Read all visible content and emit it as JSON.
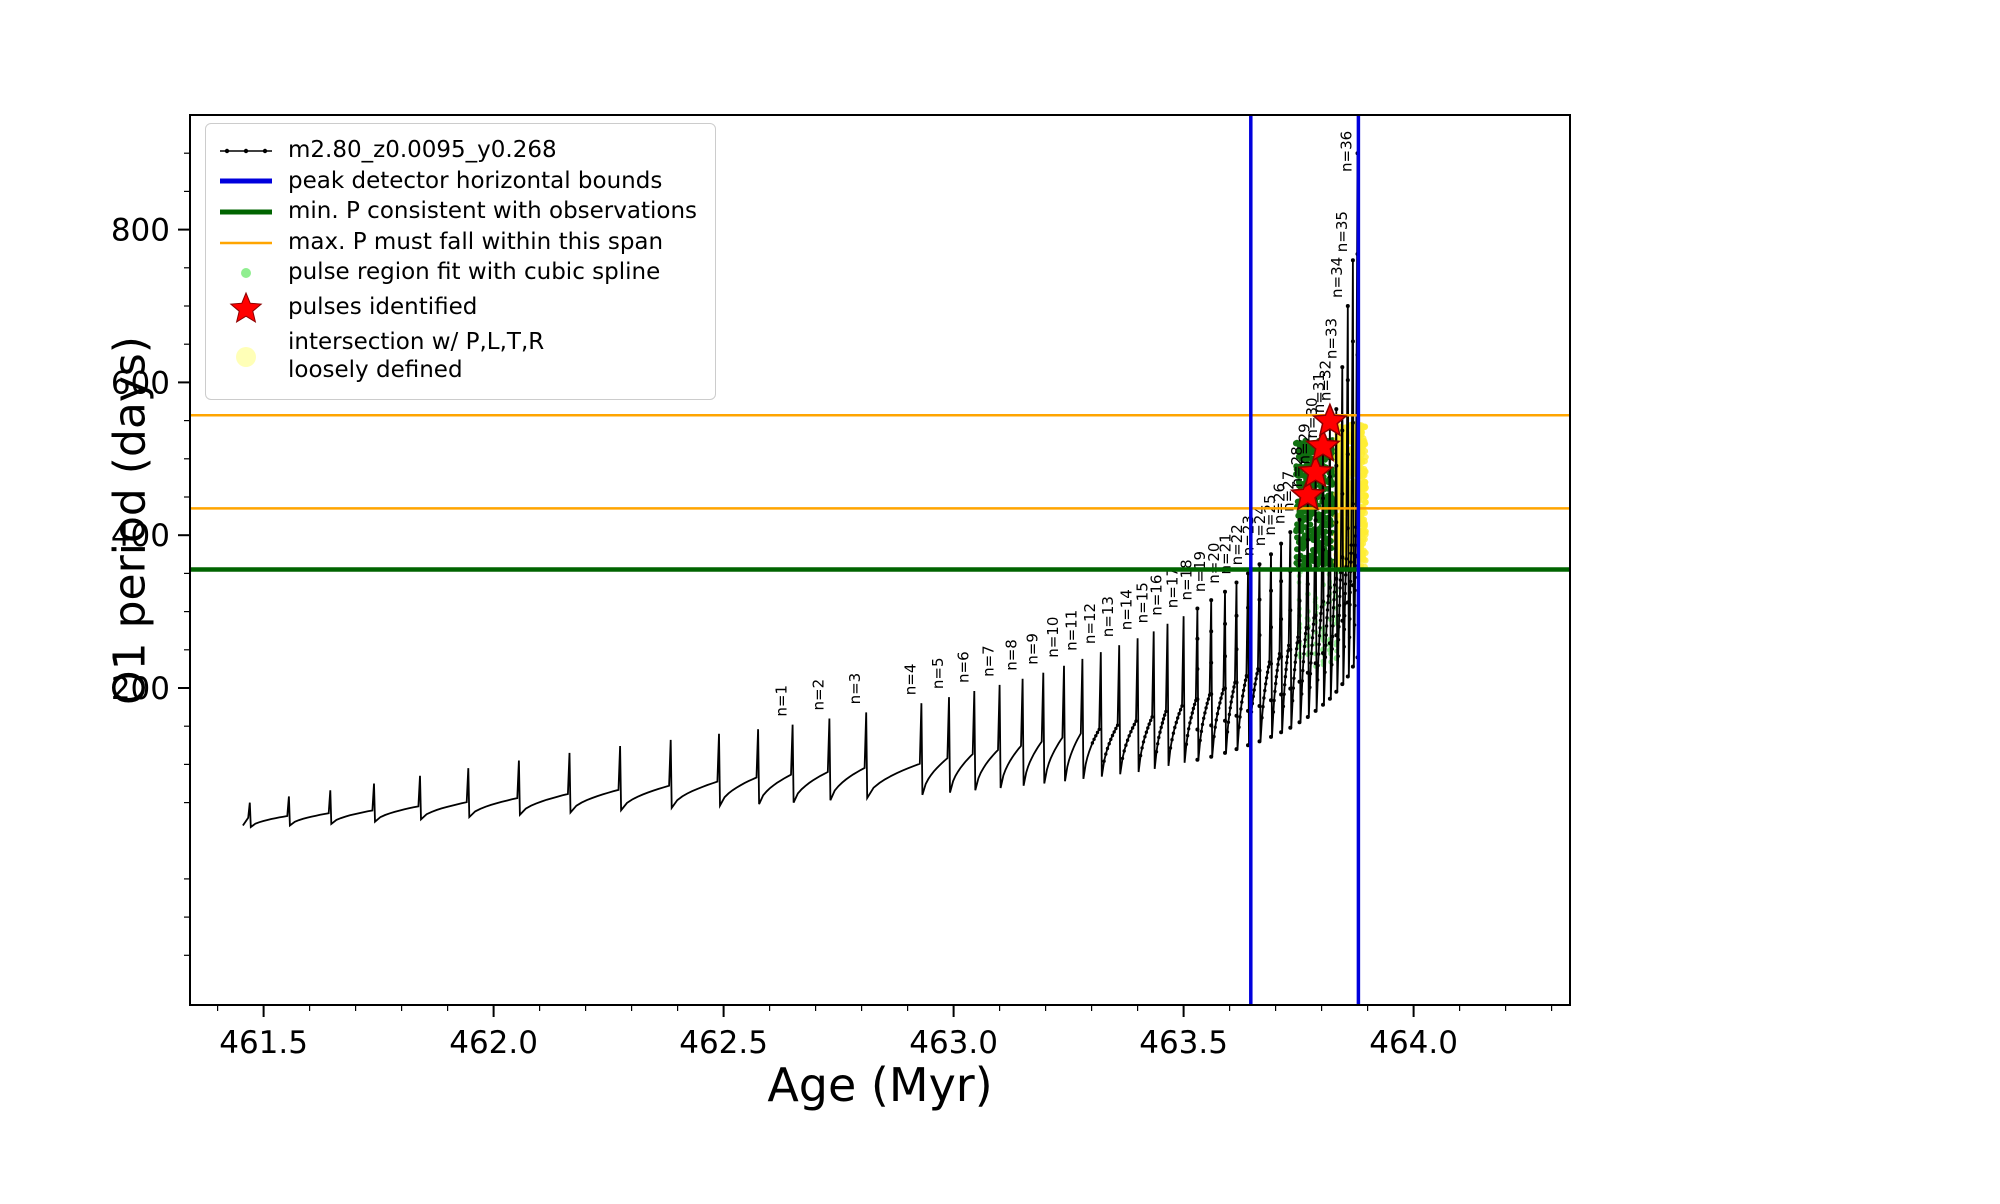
{
  "chart_data": {
    "type": "line",
    "title": "",
    "xlabel": "Age (Myr)",
    "ylabel": "O1 period (days)",
    "xlim": [
      461.34,
      464.34
    ],
    "ylim": [
      -215,
      950
    ],
    "xticks": [
      461.5,
      462.0,
      462.5,
      463.0,
      463.5,
      464.0
    ],
    "xtick_labels": [
      "461.5",
      "462.0",
      "462.5",
      "463.0",
      "463.5",
      "464.0"
    ],
    "yticks": [
      200,
      400,
      600,
      800
    ],
    "grid": false,
    "legend_position": "upper left",
    "series_label": "m2.80_z0.0095_y0.268",
    "series_color": "#000000",
    "start": {
      "age": 461.455,
      "period": 20
    },
    "vlines": {
      "label": "peak detector horizontal bounds",
      "color": "#0000dd",
      "x": [
        463.646,
        463.88
      ]
    },
    "hline_min_p": {
      "label": "min. P consistent with observations",
      "color": "#006400",
      "y": 355
    },
    "hlines_max_p": {
      "label": "max. P must fall within this span",
      "color": "#ffa500",
      "y": [
        435,
        557
      ]
    },
    "stars": {
      "label": "pulses identified",
      "color": "#ff0000",
      "edge_color": "#8b0000",
      "points": [
        [
          463.77,
          452
        ],
        [
          463.787,
          482
        ],
        [
          463.803,
          516
        ],
        [
          463.818,
          549
        ]
      ]
    },
    "spline_region": {
      "label": "pulse region fit with cubic spline",
      "color": "#90ee90",
      "dense_color": "#107010",
      "age_range": [
        463.744,
        463.826
      ],
      "period_range": [
        360,
        525
      ],
      "sparse_period_range": [
        228,
        352
      ],
      "sparse_cols": [
        463.752,
        463.77,
        463.787,
        463.803,
        463.818,
        463.832
      ],
      "sparse_per_col": 14,
      "dense_count": 400
    },
    "yellow_region": {
      "label": "intersection w/ P,L,T,R\nloosely defined",
      "color": "#ffee33",
      "age_range": [
        463.832,
        463.896
      ],
      "period_range": [
        356,
        545
      ],
      "count": 650
    },
    "pulses": [
      {
        "n": null,
        "age": 461.47,
        "peak": 50,
        "trough": 18
      },
      {
        "n": null,
        "age": 461.555,
        "peak": 58,
        "trough": 20
      },
      {
        "n": null,
        "age": 461.645,
        "peak": 66,
        "trough": 22
      },
      {
        "n": null,
        "age": 461.74,
        "peak": 75,
        "trough": 25
      },
      {
        "n": null,
        "age": 461.84,
        "peak": 85,
        "trough": 28
      },
      {
        "n": null,
        "age": 461.945,
        "peak": 95,
        "trough": 31
      },
      {
        "n": null,
        "age": 462.055,
        "peak": 105,
        "trough": 34
      },
      {
        "n": null,
        "age": 462.165,
        "peak": 115,
        "trough": 37
      },
      {
        "n": null,
        "age": 462.275,
        "peak": 124,
        "trough": 40
      },
      {
        "n": null,
        "age": 462.385,
        "peak": 132,
        "trough": 43
      },
      {
        "n": null,
        "age": 462.49,
        "peak": 140,
        "trough": 46
      },
      {
        "n": null,
        "age": 462.575,
        "peak": 146,
        "trough": 48
      },
      {
        "n": 1,
        "age": 462.65,
        "peak": 152,
        "trough": 50
      },
      {
        "n": 2,
        "age": 462.73,
        "peak": 160,
        "trough": 53
      },
      {
        "n": 3,
        "age": 462.81,
        "peak": 168,
        "trough": 56
      },
      {
        "n": 4,
        "age": 462.93,
        "peak": 180,
        "trough": 60
      },
      {
        "n": 5,
        "age": 462.99,
        "peak": 188,
        "trough": 63
      },
      {
        "n": 6,
        "age": 463.045,
        "peak": 196,
        "trough": 66
      },
      {
        "n": 7,
        "age": 463.1,
        "peak": 204,
        "trough": 69
      },
      {
        "n": 8,
        "age": 463.15,
        "peak": 212,
        "trough": 72
      },
      {
        "n": 9,
        "age": 463.195,
        "peak": 220,
        "trough": 75
      },
      {
        "n": 10,
        "age": 463.24,
        "peak": 229,
        "trough": 78
      },
      {
        "n": 11,
        "age": 463.28,
        "peak": 238,
        "trough": 81
      },
      {
        "n": 12,
        "age": 463.32,
        "peak": 247,
        "trough": 84
      },
      {
        "n": 13,
        "age": 463.36,
        "peak": 256,
        "trough": 87
      },
      {
        "n": 14,
        "age": 463.4,
        "peak": 265,
        "trough": 90
      },
      {
        "n": 15,
        "age": 463.435,
        "peak": 274,
        "trough": 94
      },
      {
        "n": 16,
        "age": 463.465,
        "peak": 284,
        "trough": 98
      },
      {
        "n": 17,
        "age": 463.5,
        "peak": 294,
        "trough": 102
      },
      {
        "n": 18,
        "age": 463.53,
        "peak": 304,
        "trough": 106
      },
      {
        "n": 19,
        "age": 463.56,
        "peak": 315,
        "trough": 110
      },
      {
        "n": 20,
        "age": 463.59,
        "peak": 326,
        "trough": 115
      },
      {
        "n": 21,
        "age": 463.615,
        "peak": 338,
        "trough": 120
      },
      {
        "n": 22,
        "age": 463.64,
        "peak": 350,
        "trough": 125
      },
      {
        "n": 23,
        "age": 463.665,
        "peak": 362,
        "trough": 130
      },
      {
        "n": 24,
        "age": 463.69,
        "peak": 375,
        "trough": 136
      },
      {
        "n": 25,
        "age": 463.712,
        "peak": 389,
        "trough": 142
      },
      {
        "n": 26,
        "age": 463.732,
        "peak": 404,
        "trough": 148
      },
      {
        "n": 27,
        "age": 463.752,
        "peak": 420,
        "trough": 155
      },
      {
        "n": 28,
        "age": 463.77,
        "peak": 452,
        "trough": 162
      },
      {
        "n": 29,
        "age": 463.787,
        "peak": 482,
        "trough": 170
      },
      {
        "n": 30,
        "age": 463.803,
        "peak": 516,
        "trough": 178
      },
      {
        "n": 31,
        "age": 463.818,
        "peak": 549,
        "trough": 186
      },
      {
        "n": 32,
        "age": 463.832,
        "peak": 565,
        "trough": 195
      },
      {
        "n": 33,
        "age": 463.845,
        "peak": 620,
        "trough": 205
      },
      {
        "n": 34,
        "age": 463.857,
        "peak": 700,
        "trough": 215
      },
      {
        "n": 35,
        "age": 463.868,
        "peak": 760,
        "trough": 228
      },
      {
        "n": 36,
        "age": 463.878,
        "peak": 900,
        "trough": 240
      }
    ],
    "render": {
      "spike_half_width": 0.0035,
      "shoulder_ratio": 1.8,
      "ramp_points": 9,
      "ramp_exponent": 0.55,
      "x_minor_step": 0.1,
      "y_minor_step": 50
    }
  },
  "legend": {
    "entries": [
      {
        "key": "series",
        "marker": "line-dots",
        "color": "#000000",
        "label": "m2.80_z0.0095_y0.268"
      },
      {
        "key": "peak-bounds",
        "marker": "thick-line",
        "color": "#0000dd",
        "label": "peak detector horizontal bounds"
      },
      {
        "key": "min-p",
        "marker": "thick-line",
        "color": "#006400",
        "label": "min. P consistent with observations"
      },
      {
        "key": "max-p-span",
        "marker": "line",
        "color": "#ffa500",
        "label": "max. P must fall within this span"
      },
      {
        "key": "spline-region",
        "marker": "small-dot",
        "color": "#90ee90",
        "label": "pulse region fit with cubic spline"
      },
      {
        "key": "pulses-identified",
        "marker": "star",
        "color": "#ff0000",
        "label": "pulses identified"
      },
      {
        "key": "intersection",
        "marker": "big-dot",
        "color": "#ffffaa",
        "label": "intersection w/ P,L,T,R\nloosely defined"
      }
    ]
  }
}
